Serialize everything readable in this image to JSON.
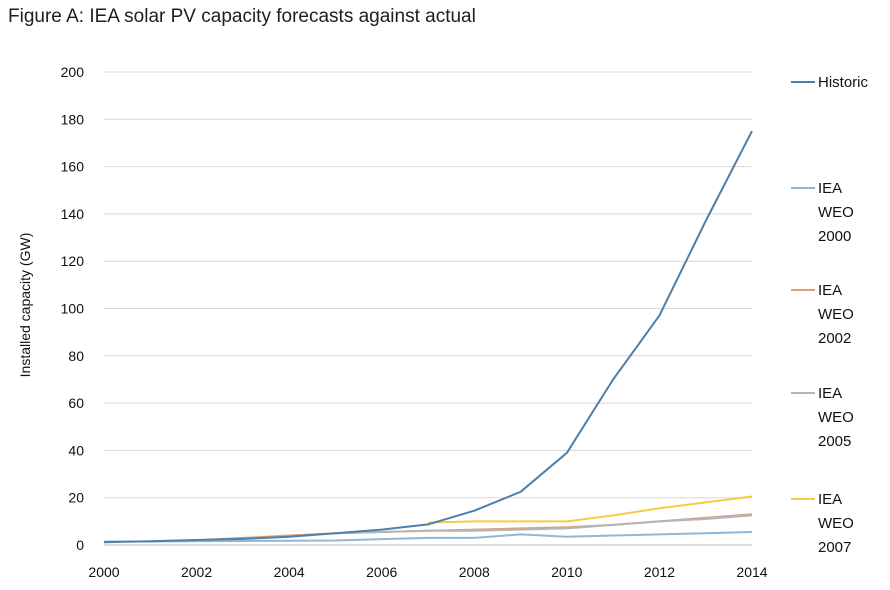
{
  "chart_data": {
    "type": "line",
    "title": "Figure A: IEA solar PV capacity forecasts against actual",
    "xlabel": "",
    "ylabel": "Installed capacity (GW)",
    "xlim": [
      2000,
      2014
    ],
    "ylim": [
      0,
      200
    ],
    "x_ticks": [
      2000,
      2002,
      2004,
      2006,
      2008,
      2010,
      2012,
      2014
    ],
    "y_ticks": [
      0,
      20,
      40,
      60,
      80,
      100,
      120,
      140,
      160,
      180,
      200
    ],
    "grid": "horizontal",
    "legend_position": "right",
    "series": [
      {
        "name": "Historic",
        "legend_lines": [
          "Historic"
        ],
        "color": "#4f7fa8",
        "x": [
          2000,
          2001,
          2002,
          2003,
          2004,
          2005,
          2006,
          2007,
          2008,
          2009,
          2010,
          2011,
          2012,
          2013,
          2014
        ],
        "y": [
          1.2,
          1.6,
          2.1,
          2.6,
          3.5,
          5.0,
          6.5,
          8.7,
          14.5,
          22.5,
          39.0,
          70.0,
          97.0,
          137.0,
          175.0
        ]
      },
      {
        "name": "IEA WEO 2000",
        "legend_lines": [
          "IEA",
          "WEO",
          "2000"
        ],
        "color": "#8fb8d8",
        "x": [
          2000,
          2001,
          2002,
          2003,
          2004,
          2005,
          2006,
          2007,
          2008,
          2009,
          2010,
          2011,
          2012,
          2013,
          2014
        ],
        "y": [
          1.5,
          1.5,
          1.6,
          1.7,
          1.8,
          1.9,
          2.5,
          3.0,
          3.0,
          4.5,
          3.5,
          4.0,
          4.5,
          5.0,
          5.5
        ]
      },
      {
        "name": "IEA WEO 2002",
        "legend_lines": [
          "IEA",
          "WEO",
          "2002"
        ],
        "color": "#d9a37e",
        "x": [
          2002,
          2003,
          2004,
          2005,
          2006,
          2007,
          2008,
          2009,
          2010,
          2011,
          2012,
          2013,
          2014
        ],
        "y": [
          2.0,
          3.0,
          4.0,
          5.0,
          5.5,
          6.0,
          6.5,
          7.0,
          7.5,
          8.5,
          10.0,
          11.5,
          13.0
        ]
      },
      {
        "name": "IEA WEO 2005",
        "legend_lines": [
          "IEA",
          "WEO",
          "2005"
        ],
        "color": "#b4b4bc",
        "x": [
          2005,
          2006,
          2007,
          2008,
          2009,
          2010,
          2011,
          2012,
          2013,
          2014
        ],
        "y": [
          5.0,
          5.5,
          6.0,
          6.0,
          6.5,
          7.0,
          8.5,
          10.0,
          11.0,
          12.5
        ]
      },
      {
        "name": "IEA WEO 2007",
        "legend_lines": [
          "IEA",
          "WEO",
          "2007"
        ],
        "color": "#f2cc45",
        "x": [
          2007,
          2008,
          2009,
          2010,
          2011,
          2012,
          2013,
          2014
        ],
        "y": [
          9.5,
          10.0,
          10.0,
          10.0,
          12.5,
          15.5,
          18.0,
          20.5
        ]
      }
    ]
  }
}
